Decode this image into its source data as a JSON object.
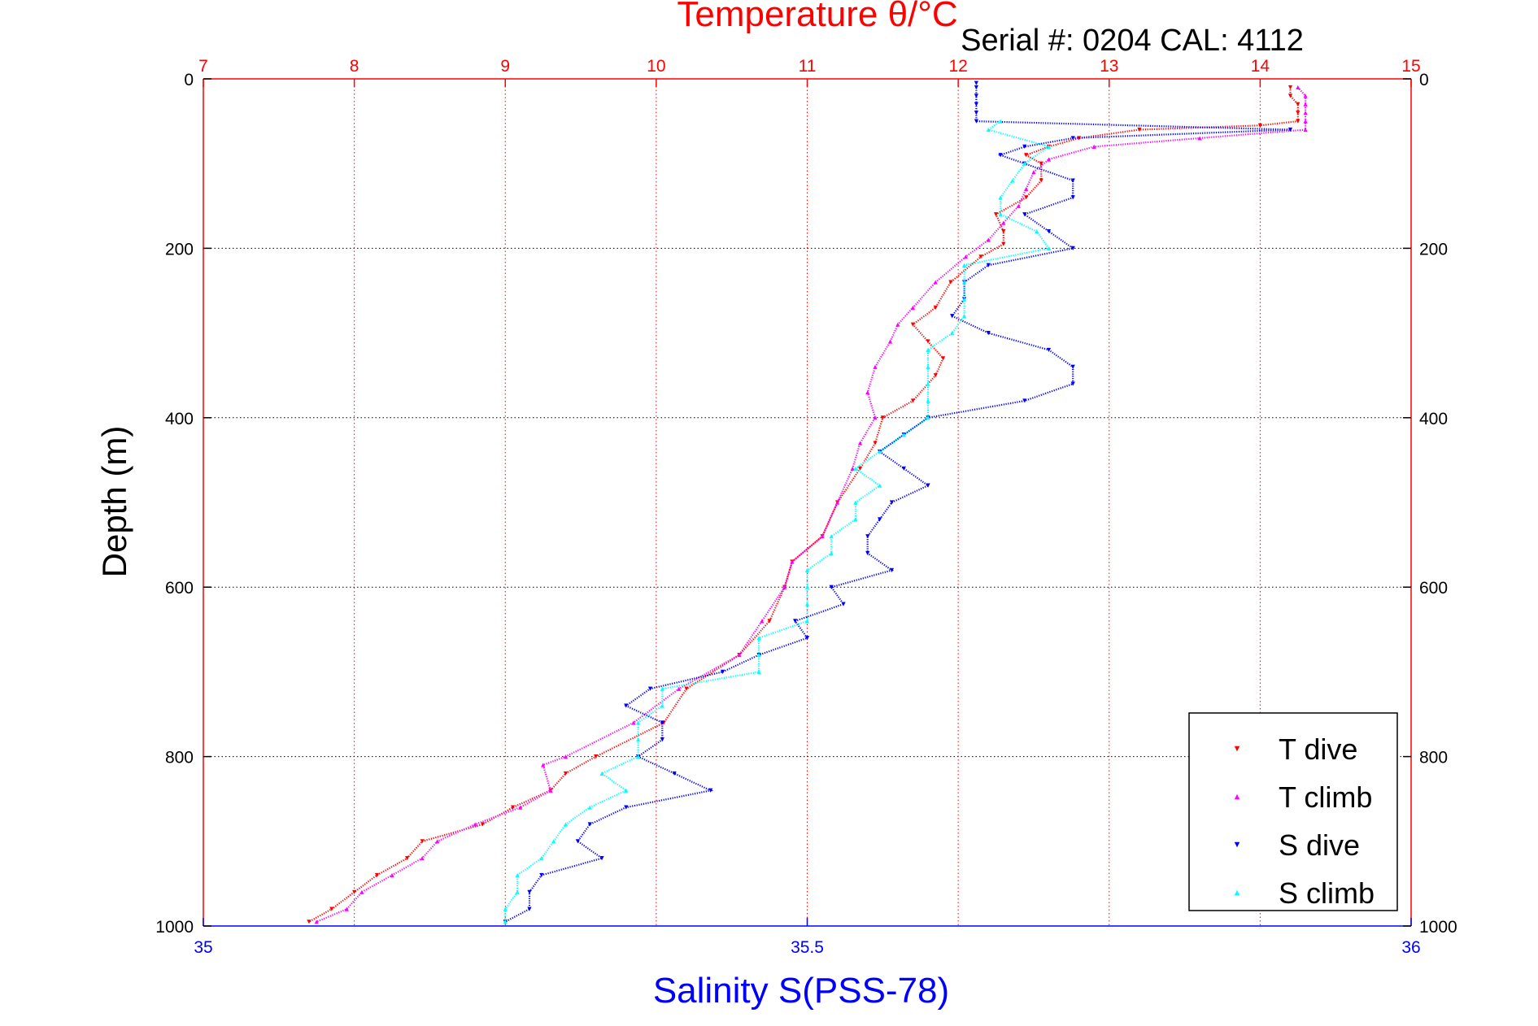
{
  "chart_data": {
    "type": "scatter",
    "title": "Temperature θ/°C",
    "subtitle": "Serial #: 0204  CAL: 4112",
    "ylabel": "Depth (m)",
    "xlabel": "Salinity S(PSS-78)",
    "depth_axis": {
      "lim": [
        0,
        1000
      ],
      "reversed": true,
      "ticks": [
        0,
        200,
        400,
        600,
        800,
        1000
      ]
    },
    "temperature_axis": {
      "lim": [
        7,
        15
      ],
      "ticks": [
        7,
        8,
        9,
        10,
        11,
        12,
        13,
        14,
        15
      ],
      "color": "#ff0000",
      "position": "top"
    },
    "salinity_axis": {
      "lim": [
        35,
        36
      ],
      "ticks": [
        35,
        35.5,
        36
      ],
      "tick_labels": [
        "35",
        "35.5",
        "36"
      ],
      "color": "#0000ff",
      "position": "bottom"
    },
    "grid": true,
    "legend": {
      "position": "bottom-right"
    },
    "series": [
      {
        "name": "T dive",
        "axis": "temperature",
        "color": "#ff0000",
        "marker": "triangle-down",
        "depth": [
          10,
          20,
          30,
          40,
          50,
          55,
          60,
          70,
          80,
          90,
          100,
          120,
          140,
          160,
          180,
          195,
          210,
          240,
          270,
          290,
          310,
          330,
          350,
          380,
          400,
          430,
          460,
          500,
          540,
          570,
          600,
          640,
          680,
          720,
          760,
          800,
          820,
          840,
          860,
          880,
          900,
          920,
          940,
          960,
          980,
          995
        ],
        "values": [
          14.2,
          14.2,
          14.25,
          14.25,
          14.25,
          14.0,
          13.2,
          12.8,
          12.6,
          12.45,
          12.55,
          12.55,
          12.45,
          12.25,
          12.3,
          12.3,
          12.15,
          11.95,
          11.85,
          11.7,
          11.8,
          11.9,
          11.85,
          11.7,
          11.5,
          11.45,
          11.35,
          11.2,
          11.1,
          10.9,
          10.85,
          10.75,
          10.55,
          10.2,
          10.05,
          9.6,
          9.4,
          9.3,
          9.05,
          8.85,
          8.45,
          8.35,
          8.15,
          8.0,
          7.85,
          7.7
        ]
      },
      {
        "name": "T climb",
        "axis": "temperature",
        "color": "#ff00ff",
        "marker": "triangle-up",
        "depth": [
          10,
          20,
          30,
          40,
          50,
          60,
          70,
          80,
          95,
          110,
          130,
          150,
          170,
          190,
          210,
          240,
          270,
          290,
          310,
          340,
          370,
          400,
          430,
          460,
          500,
          540,
          570,
          600,
          640,
          680,
          720,
          760,
          800,
          810,
          840,
          860,
          880,
          900,
          920,
          940,
          960,
          980,
          995
        ],
        "values": [
          14.25,
          14.3,
          14.3,
          14.3,
          14.3,
          14.3,
          13.6,
          12.9,
          12.6,
          12.5,
          12.45,
          12.4,
          12.3,
          12.2,
          12.05,
          11.85,
          11.7,
          11.6,
          11.55,
          11.45,
          11.4,
          11.45,
          11.35,
          11.3,
          11.2,
          11.1,
          10.9,
          10.85,
          10.7,
          10.55,
          10.15,
          9.85,
          9.4,
          9.25,
          9.3,
          9.1,
          8.8,
          8.55,
          8.45,
          8.25,
          8.05,
          7.95,
          7.75
        ]
      },
      {
        "name": "S dive",
        "axis": "salinity",
        "color": "#0000ff",
        "marker": "triangle-down",
        "depth": [
          5,
          10,
          20,
          30,
          40,
          50,
          60,
          70,
          80,
          90,
          100,
          120,
          140,
          160,
          180,
          200,
          220,
          240,
          260,
          280,
          300,
          320,
          340,
          360,
          380,
          400,
          420,
          440,
          460,
          480,
          500,
          520,
          540,
          560,
          580,
          600,
          620,
          640,
          660,
          680,
          700,
          720,
          740,
          760,
          780,
          800,
          820,
          840,
          860,
          880,
          900,
          920,
          940,
          960,
          980,
          995
        ],
        "values": [
          35.64,
          35.64,
          35.64,
          35.64,
          35.64,
          35.64,
          35.9,
          35.72,
          35.68,
          35.66,
          35.68,
          35.72,
          35.72,
          35.68,
          35.7,
          35.72,
          35.65,
          35.63,
          35.63,
          35.62,
          35.65,
          35.7,
          35.72,
          35.72,
          35.68,
          35.6,
          35.58,
          35.56,
          35.58,
          35.6,
          35.57,
          35.56,
          35.55,
          35.55,
          35.57,
          35.52,
          35.53,
          35.49,
          35.5,
          35.46,
          35.43,
          35.37,
          35.35,
          35.38,
          35.38,
          35.36,
          35.39,
          35.42,
          35.35,
          35.32,
          35.31,
          35.33,
          35.28,
          35.27,
          35.27,
          35.25
        ]
      },
      {
        "name": "S climb",
        "axis": "salinity",
        "color": "#00ffff",
        "marker": "triangle-up",
        "depth": [
          50,
          60,
          80,
          100,
          120,
          140,
          160,
          180,
          200,
          220,
          240,
          260,
          280,
          300,
          320,
          340,
          360,
          380,
          400,
          420,
          440,
          460,
          480,
          500,
          520,
          540,
          560,
          580,
          600,
          620,
          640,
          660,
          680,
          700,
          720,
          740,
          760,
          780,
          800,
          820,
          840,
          860,
          880,
          900,
          920,
          940,
          960,
          980,
          995
        ],
        "values": [
          35.66,
          35.65,
          35.7,
          35.68,
          35.67,
          35.66,
          35.66,
          35.69,
          35.7,
          35.63,
          35.63,
          35.63,
          35.63,
          35.62,
          35.6,
          35.6,
          35.6,
          35.6,
          35.6,
          35.58,
          35.56,
          35.54,
          35.56,
          35.54,
          35.54,
          35.52,
          35.52,
          35.5,
          35.5,
          35.5,
          35.5,
          35.46,
          35.46,
          35.46,
          35.38,
          35.38,
          35.36,
          35.36,
          35.36,
          35.33,
          35.35,
          35.32,
          35.3,
          35.29,
          35.28,
          35.26,
          35.26,
          35.25,
          35.25
        ]
      }
    ]
  }
}
